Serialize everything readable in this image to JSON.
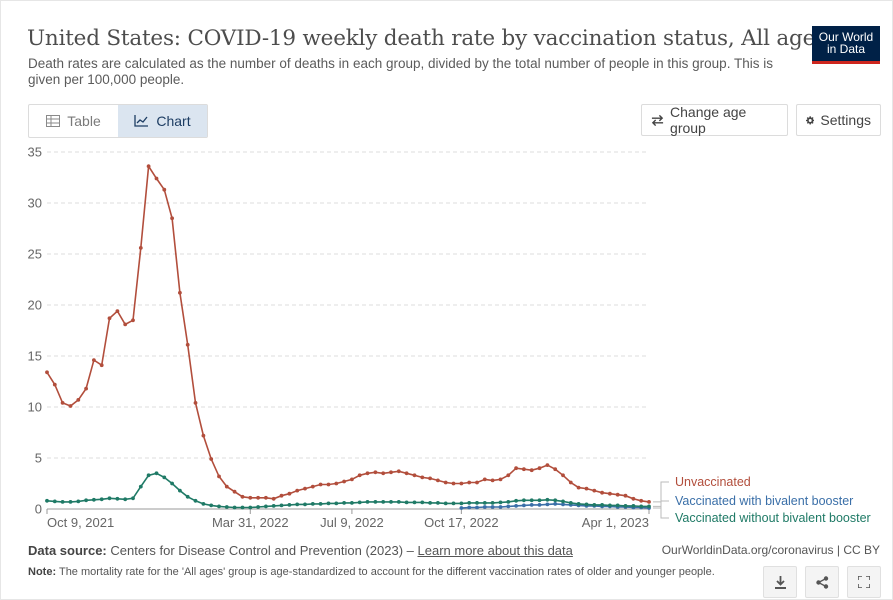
{
  "header": {
    "title": "United States: COVID-19 weekly death rate by vaccination status, All ages",
    "subtitle": "Death rates are calculated as the number of deaths in each group, divided by the total number of people in this group. This is given per 100,000 people.",
    "logo_line1": "Our World",
    "logo_line2": "in Data"
  },
  "tabs": {
    "table": "Table",
    "chart": "Chart",
    "active": "chart"
  },
  "controls": {
    "change_age_group": "Change age group",
    "settings": "Settings"
  },
  "footer": {
    "source_label": "Data source:",
    "source_text": "Centers for Disease Control and Prevention (2023) –",
    "learn_more": "Learn more about this data",
    "citation": "OurWorldinData.org/coronavirus | CC BY",
    "note_label": "Note:",
    "note_text": "The mortality rate for the 'All ages' group is age-standardized to account for the different vaccination rates of older and younger people."
  },
  "icons": {
    "download": "download-icon",
    "share": "share-icon",
    "fullscreen": "fullscreen-icon",
    "settings": "gear-icon",
    "change": "swap-arrows-icon",
    "table": "table-icon",
    "chart": "line-chart-icon"
  },
  "colors": {
    "unvaccinated": "#b24e3c",
    "bivalent": "#3a6fa8",
    "no_bivalent": "#1f7a66",
    "accent": "#002147",
    "logo_red": "#ce261e"
  },
  "chart_data": {
    "type": "line",
    "title": "United States: COVID-19 weekly death rate by vaccination status, All ages",
    "ylim": [
      0,
      35
    ],
    "yticks": [
      0,
      5,
      10,
      15,
      20,
      25,
      30,
      35
    ],
    "xticks": [
      "Oct 9, 2021",
      "Mar 31, 2022",
      "Jul 9, 2022",
      "Oct 17, 2022",
      "Apr 1, 2023"
    ],
    "grid": true,
    "legend_position": "right",
    "series": [
      {
        "name": "Unvaccinated",
        "color": "#b24e3c",
        "start_week": 0,
        "values": [
          13.4,
          12.2,
          10.4,
          10.1,
          10.7,
          11.8,
          14.6,
          14.1,
          18.7,
          19.4,
          18.1,
          18.5,
          25.6,
          33.6,
          32.4,
          31.3,
          28.5,
          21.2,
          16.1,
          10.4,
          7.2,
          4.9,
          3.2,
          2.2,
          1.7,
          1.2,
          1.1,
          1.1,
          1.1,
          1.0,
          1.3,
          1.5,
          1.8,
          2.0,
          2.2,
          2.4,
          2.4,
          2.5,
          2.7,
          2.9,
          3.3,
          3.5,
          3.6,
          3.5,
          3.6,
          3.7,
          3.5,
          3.3,
          3.1,
          3.0,
          2.8,
          2.6,
          2.5,
          2.5,
          2.6,
          2.6,
          2.9,
          2.8,
          2.9,
          3.3,
          4.0,
          3.9,
          3.8,
          4.0,
          4.3,
          3.9,
          3.3,
          2.6,
          2.1,
          2.0,
          1.8,
          1.6,
          1.5,
          1.4,
          1.3,
          1.0,
          0.8,
          0.7
        ]
      },
      {
        "name": "Vaccinated with bivalent booster",
        "color": "#3a6fa8",
        "start_week": 53,
        "values": [
          0.1,
          0.15,
          0.15,
          0.2,
          0.2,
          0.2,
          0.25,
          0.3,
          0.35,
          0.4,
          0.4,
          0.45,
          0.5,
          0.45,
          0.4,
          0.35,
          0.3,
          0.3,
          0.25,
          0.25,
          0.2,
          0.2,
          0.15,
          0.15,
          0.1
        ]
      },
      {
        "name": "Vaccinated without bivalent booster",
        "color": "#1f7a66",
        "start_week": 0,
        "values": [
          0.8,
          0.75,
          0.7,
          0.7,
          0.75,
          0.85,
          0.9,
          0.95,
          1.05,
          1.0,
          0.95,
          1.05,
          2.2,
          3.3,
          3.5,
          3.1,
          2.5,
          1.8,
          1.2,
          0.8,
          0.5,
          0.35,
          0.25,
          0.2,
          0.15,
          0.15,
          0.15,
          0.2,
          0.25,
          0.3,
          0.35,
          0.4,
          0.45,
          0.45,
          0.5,
          0.5,
          0.55,
          0.55,
          0.6,
          0.6,
          0.65,
          0.7,
          0.7,
          0.7,
          0.7,
          0.7,
          0.65,
          0.65,
          0.65,
          0.6,
          0.6,
          0.55,
          0.55,
          0.55,
          0.6,
          0.6,
          0.6,
          0.6,
          0.65,
          0.7,
          0.8,
          0.85,
          0.85,
          0.85,
          0.9,
          0.85,
          0.75,
          0.6,
          0.5,
          0.45,
          0.4,
          0.4,
          0.35,
          0.35,
          0.3,
          0.3,
          0.25,
          0.25
        ]
      }
    ]
  }
}
